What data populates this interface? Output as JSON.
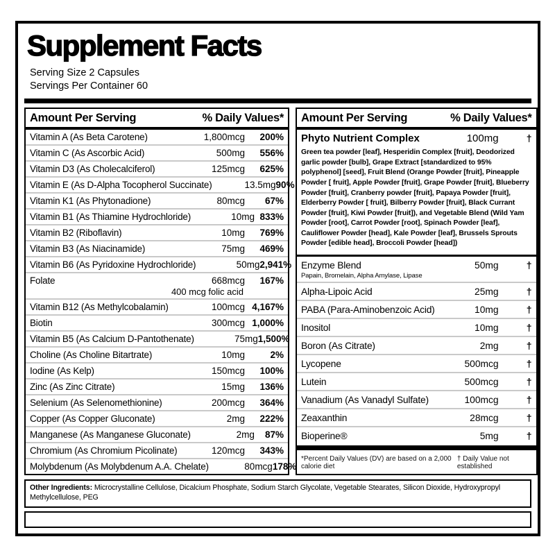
{
  "label": {
    "title": "Supplement Facts",
    "serving_size": "Serving Size 2 Capsules",
    "servings_per_container": "Servings Per Container 60",
    "column_header": {
      "amount": "Amount Per Serving",
      "dv": "% Daily Values*"
    },
    "left_rows": [
      {
        "name": "Vitamin A (As Beta Carotene)",
        "amount": "1,800mcg",
        "dv": "200%"
      },
      {
        "name": "Vitamin C (As Ascorbic Acid)",
        "amount": "500mg",
        "dv": "556%"
      },
      {
        "name": "Vitamin D3 (As Cholecalciferol)",
        "amount": "125mcg",
        "dv": "625%"
      },
      {
        "name": "Vitamin E (As D-Alpha Tocopherol Succinate)",
        "amount": "13.5mg",
        "dv": "90%"
      },
      {
        "name": "Vitamin K1 (As Phytonadione)",
        "amount": "80mcg",
        "dv": "67%"
      },
      {
        "name": "Vitamin B1 (As Thiamine Hydrochloride)",
        "amount": "10mg",
        "dv": "833%"
      },
      {
        "name": "Vitamin B2 (Riboflavin)",
        "amount": "10mg",
        "dv": "769%"
      },
      {
        "name": "Vitamin B3 (As Niacinamide)",
        "amount": "75mg",
        "dv": "469%"
      },
      {
        "name": "Vitamin B6 (As Pyridoxine Hydrochloride)",
        "amount": "50mg",
        "dv": "2,941%"
      },
      {
        "name": "Folate",
        "amount": "668mcg",
        "dv": "167%",
        "sub_amount": "400 mcg folic acid"
      },
      {
        "name": "Vitamin B12 (As Methylcobalamin)",
        "amount": "100mcg",
        "dv": "4,167%"
      },
      {
        "name": "Biotin",
        "amount": "300mcg",
        "dv": "1,000%"
      },
      {
        "name": "Vitamin B5 (As Calcium D-Pantothenate)",
        "amount": "75mg",
        "dv": "1,500%"
      },
      {
        "name": "Choline (As Choline Bitartrate)",
        "amount": "10mg",
        "dv": "2%"
      },
      {
        "name": "Iodine (As Kelp)",
        "amount": "150mcg",
        "dv": "100%"
      },
      {
        "name": "Zinc (As Zinc Citrate)",
        "amount": "15mg",
        "dv": "136%"
      },
      {
        "name": "Selenium (As Selenomethionine)",
        "amount": "200mcg",
        "dv": "364%"
      },
      {
        "name": "Copper (As Copper Gluconate)",
        "amount": "2mg",
        "dv": "222%"
      },
      {
        "name": "Manganese (As Manganese Gluconate)",
        "amount": "2mg",
        "dv": "87%"
      },
      {
        "name": "Chromium (As Chromium Picolinate)",
        "amount": "120mcg",
        "dv": "343%"
      },
      {
        "name": "Molybdenum (As Molybdenum A.A. Chelate)",
        "amount": "80mcg",
        "dv": "178%"
      }
    ],
    "right_panel": {
      "complex": {
        "name": "Phyto Nutrient Complex",
        "amount": "100mg",
        "dv": "†",
        "description": "Green tea powder [leaf], Hesperidin Complex [fruit], Deodorized garlic powder [bulb], Grape Extract [standardized to 95% polyphenol] [seed], Fruit Blend (Orange Powder [fruit], Pineapple Powder [ fruit], Apple Powder [fruit], Grape Powder [fruit], Blueberry Powder [fruit], Cranberry powder [fruit], Papaya Powder [fruit], Elderberry Powder [ fruit], Bilberry Powder [fruit], Black Currant Powder [fruit], Kiwi Powder [fruit]), and Vegetable Blend (Wild Yam Powder [root], Carrot Powder [root], Spinach Powder [leaf], Cauliflower Powder [head], Kale Powder [leaf], Brussels Sprouts Powder [edible head], Broccoli Powder [head])"
      },
      "rows": [
        {
          "name": "Enzyme Blend",
          "amount": "50mg",
          "dv": "†",
          "sub_name": "Papain, Bromelain, Alpha Amylase, Lipase"
        },
        {
          "name": "Alpha-Lipoic Acid",
          "amount": "25mg",
          "dv": "†"
        },
        {
          "name": "PABA (Para-Aminobenzoic Acid)",
          "amount": "10mg",
          "dv": "†"
        },
        {
          "name": "Inositol",
          "amount": "10mg",
          "dv": "†"
        },
        {
          "name": "Boron (As Citrate)",
          "amount": "2mg",
          "dv": "†"
        },
        {
          "name": "Lycopene",
          "amount": "500mcg",
          "dv": "†"
        },
        {
          "name": "Lutein",
          "amount": "500mcg",
          "dv": "†"
        },
        {
          "name": "Vanadium (As Vanadyl Sulfate)",
          "amount": "100mcg",
          "dv": "†"
        },
        {
          "name": "Zeaxanthin",
          "amount": "28mcg",
          "dv": "†"
        },
        {
          "name": "Bioperine®",
          "amount": "5mg",
          "dv": "†"
        }
      ],
      "footnote_dv": "*Percent Daily Values (DV) are based on a 2,000 calorie diet",
      "footnote_dagger": "† Daily Value not established"
    },
    "other_ingredients_label": "Other Ingredients:",
    "other_ingredients_list": "Microcrystalline Cellulose, Dicalcium Phosphate, Sodium Starch Glycolate, Vegetable Stearates, Silicon Dioxide, Hydroxypropyl Methylcellulose, PEG",
    "colors": {
      "ink": "#000000",
      "paper": "#ffffff",
      "row_divider": "#c9c9c9"
    }
  }
}
